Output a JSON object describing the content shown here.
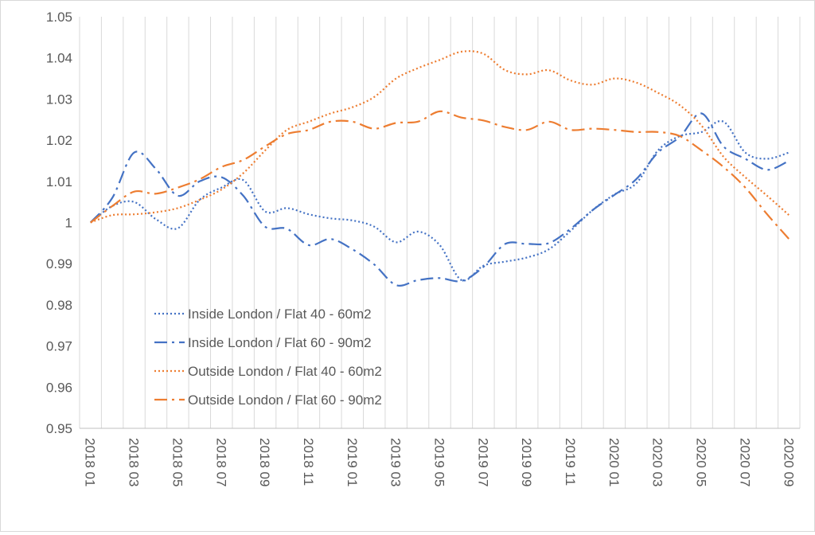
{
  "chart_data": {
    "type": "line",
    "title": "",
    "xlabel": "",
    "ylabel": "",
    "ylim": [
      0.95,
      1.05
    ],
    "y_ticks": [
      "0.95",
      "0.96",
      "0.97",
      "0.98",
      "0.99",
      "1",
      "1.01",
      "1.02",
      "1.03",
      "1.04",
      "1.05"
    ],
    "y_tick_values": [
      0.95,
      0.96,
      0.97,
      0.98,
      0.99,
      1.0,
      1.01,
      1.02,
      1.03,
      1.04,
      1.05
    ],
    "x_tick_labels": [
      "2018 01",
      "2018 03",
      "2018 05",
      "2018 07",
      "2018 09",
      "2018 11",
      "2019 01",
      "2019 03",
      "2019 05",
      "2019 07",
      "2019 09",
      "2019 11",
      "2020 01",
      "2020 03",
      "2020 05",
      "2020 07",
      "2020 09"
    ],
    "categories": [
      "2018 01",
      "2018 02",
      "2018 03",
      "2018 04",
      "2018 05",
      "2018 06",
      "2018 07",
      "2018 08",
      "2018 09",
      "2018 10",
      "2018 11",
      "2018 12",
      "2019 01",
      "2019 02",
      "2019 03",
      "2019 04",
      "2019 05",
      "2019 06",
      "2019 07",
      "2019 08",
      "2019 09",
      "2019 10",
      "2019 11",
      "2019 12",
      "2020 01",
      "2020 02",
      "2020 03",
      "2020 04",
      "2020 05",
      "2020 06",
      "2020 07",
      "2020 08",
      "2020 09"
    ],
    "grid": "vertical",
    "legend_position": "lower-left",
    "series": [
      {
        "name": "Inside London / Flat 40 - 60m2",
        "color": "#4472c4",
        "dash": "dotted",
        "values": [
          1.0,
          1.004,
          1.005,
          1.0008,
          0.9986,
          1.0055,
          1.0085,
          1.0103,
          1.0027,
          1.0035,
          1.002,
          1.001,
          1.0005,
          0.999,
          0.9952,
          0.9978,
          0.9945,
          0.986,
          0.9895,
          0.9905,
          0.9915,
          0.9935,
          0.998,
          1.003,
          1.0068,
          1.0095,
          1.0175,
          1.021,
          1.022,
          1.0245,
          1.017,
          1.0155,
          1.017
        ]
      },
      {
        "name": "Inside London / Flat 60 - 90m2",
        "color": "#4472c4",
        "dash": "long-dash-dot",
        "values": [
          1.0,
          1.006,
          1.017,
          1.013,
          1.0065,
          1.01,
          1.011,
          1.0065,
          0.999,
          0.9985,
          0.9945,
          0.996,
          0.9935,
          0.9898,
          0.9848,
          0.986,
          0.9865,
          0.9858,
          0.9892,
          0.9948,
          0.9948,
          0.995,
          0.9985,
          1.003,
          1.0067,
          1.0105,
          1.017,
          1.0208,
          1.0265,
          1.0185,
          1.0155,
          1.0128,
          1.015
        ]
      },
      {
        "name": "Outside London / Flat 40 - 60m2",
        "color": "#ed7d31",
        "dash": "dotted",
        "values": [
          1.0,
          1.0018,
          1.002,
          1.0025,
          1.0035,
          1.0055,
          1.008,
          1.012,
          1.0175,
          1.0225,
          1.0245,
          1.0265,
          1.028,
          1.0305,
          1.035,
          1.0375,
          1.0395,
          1.0415,
          1.041,
          1.037,
          1.036,
          1.037,
          1.0345,
          1.0335,
          1.035,
          1.034,
          1.0315,
          1.0285,
          1.0235,
          1.016,
          1.011,
          1.0065,
          1.0018
        ]
      },
      {
        "name": "Outside London / Flat 60 - 90m2",
        "color": "#ed7d31",
        "dash": "long-dash-dot",
        "values": [
          1.0,
          1.004,
          1.0075,
          1.007,
          1.0085,
          1.0105,
          1.0135,
          1.0152,
          1.0185,
          1.0215,
          1.0225,
          1.0245,
          1.0245,
          1.0228,
          1.0242,
          1.0245,
          1.027,
          1.0255,
          1.0248,
          1.0232,
          1.0225,
          1.0245,
          1.0225,
          1.0228,
          1.0225,
          1.022,
          1.022,
          1.021,
          1.0175,
          1.0135,
          1.0085,
          1.002,
          0.996
        ]
      }
    ]
  }
}
